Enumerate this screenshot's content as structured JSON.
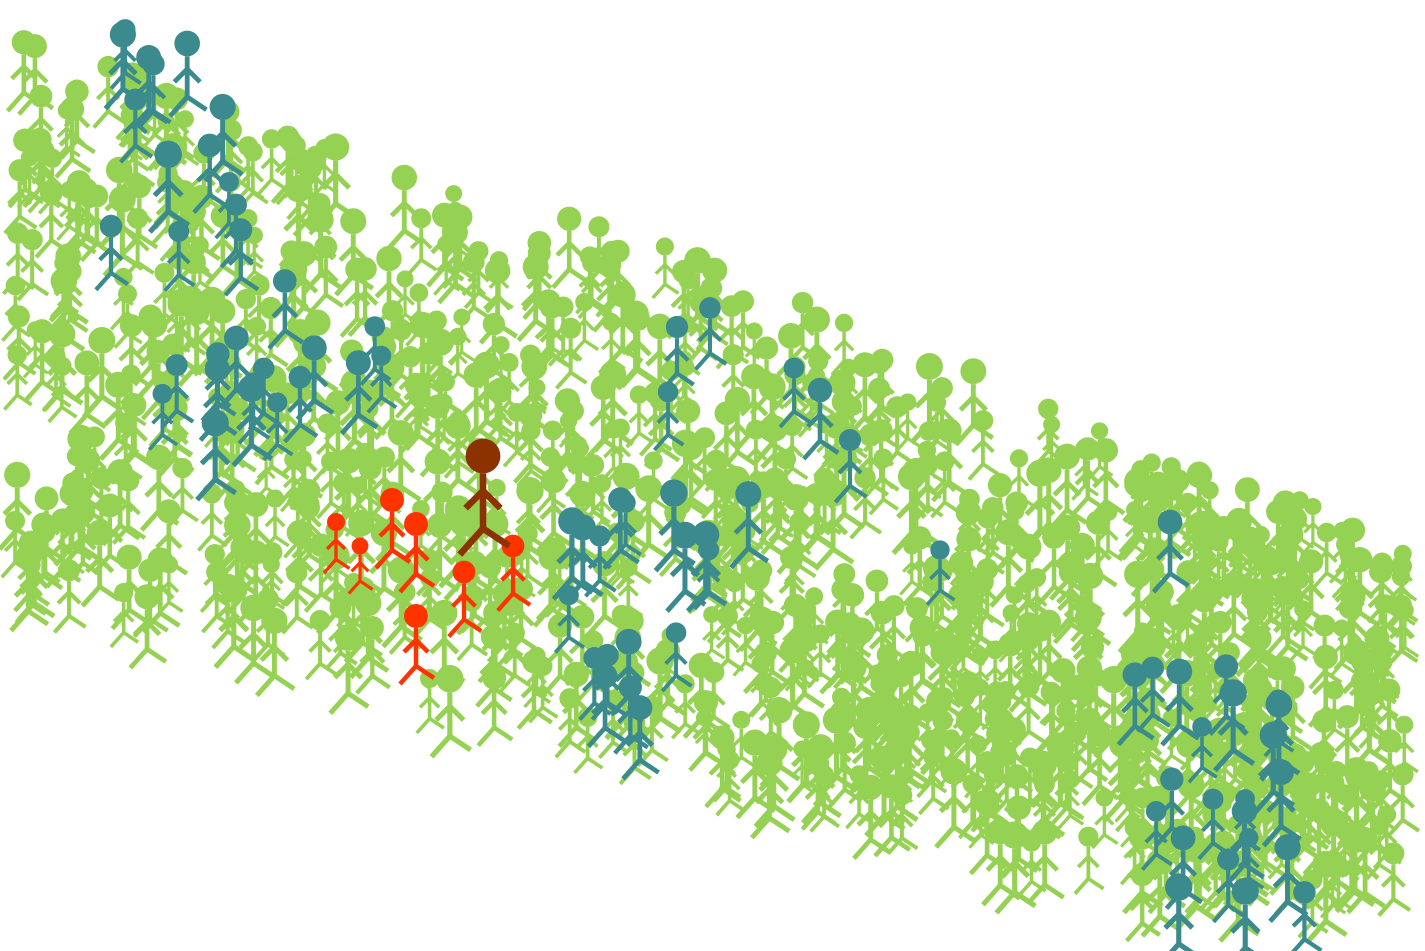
{
  "colors": {
    "background": "#ffffff",
    "crowd": "#95d152",
    "group": "#3a8a8e",
    "family": "#ff3300",
    "leader": "#8b3200"
  },
  "figures": {
    "crowd_icon": "stick-figure-icon",
    "group_icon": "stick-figure-icon",
    "family_icon": "stick-figure-icon",
    "leader_icon": "stick-figure-icon"
  }
}
